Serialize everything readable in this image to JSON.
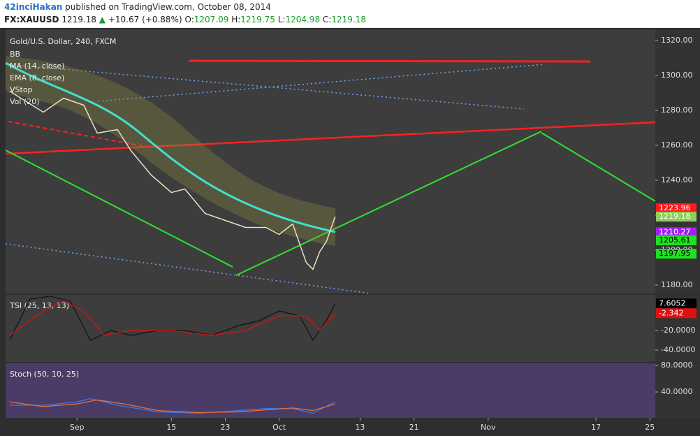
{
  "header": {
    "user": "42inciHakan",
    "published": "published on TradingView.com, October 08, 2014",
    "symbol": "FX:XAUUSD",
    "last": "1219.18",
    "arrow": "▲",
    "change": "+10.67 (+0.88%)",
    "ohlc": [
      {
        "key": "O:",
        "value": "1207.09"
      },
      {
        "key": "H:",
        "value": "1219.75"
      },
      {
        "key": "L:",
        "value": "1204.98"
      },
      {
        "key": "C:",
        "value": "1219.18"
      }
    ]
  },
  "chart_data": [
    {
      "type": "line",
      "title": "Gold/U.S. Dollar, 240, FXCM",
      "legend": [
        "BB",
        "MA (14, close)",
        "EMA (8, close)",
        "VStop",
        "Vol (20)"
      ],
      "xlim": [
        -10.6,
        85.8
      ],
      "ylim": [
        1175.2,
        1326.4
      ],
      "yticks": [
        {
          "value": 1180,
          "label": "1180.00"
        },
        {
          "value": 1200,
          "label": "1200.00"
        },
        {
          "value": 1220,
          "label": "1220.00"
        },
        {
          "value": 1240,
          "label": "1240.00"
        },
        {
          "value": 1260,
          "label": "1260.00"
        },
        {
          "value": 1280,
          "label": "1280.00"
        },
        {
          "value": 1300,
          "label": "1300.00"
        },
        {
          "value": 1320,
          "label": "1320.00"
        }
      ],
      "series": [
        {
          "color": "#e8e0c0",
          "x": [
            -10,
            -5,
            -2,
            1,
            3,
            6,
            8,
            11,
            14,
            16,
            19,
            22,
            25,
            28,
            30,
            32,
            34,
            35,
            36,
            37,
            38.3
          ],
          "values": [
            1291,
            1279,
            1287,
            1283,
            1267,
            1269,
            1257,
            1243,
            1233,
            1235,
            1221,
            1217,
            1213,
            1213,
            1209,
            1215,
            1193,
            1189,
            1199,
            1205,
            1219.18
          ]
        }
      ],
      "price_tags": [
        {
          "value": 1223.96,
          "color": "#ff1a1a",
          "text_color": "#ffffff"
        },
        {
          "value": 1219.18,
          "color": "#8fcf5a",
          "text_color": "#ffffff"
        },
        {
          "value": 1210.27,
          "color": "#a020f0",
          "text_color": "#ffffff"
        },
        {
          "value": 1205.61,
          "color": "#20e020",
          "text_color": "#000000"
        },
        {
          "value": 1197.95,
          "color": "#20e020",
          "text_color": "#000000"
        }
      ]
    },
    {
      "type": "line",
      "title": "TSI (25, 13, 13)",
      "xlim": [
        -10.6,
        85.8
      ],
      "ylim": [
        -52.1,
        16.4
      ],
      "yticks": [
        {
          "value": -20,
          "label": "-20.0000"
        },
        {
          "value": -40,
          "label": "-40.0000"
        }
      ],
      "series": [
        {
          "color": "#111111",
          "x": [
            -10,
            -7,
            -4,
            -1,
            2,
            5,
            8,
            12,
            16,
            20,
            24,
            27,
            30,
            33,
            35,
            37,
            38.3
          ],
          "values": [
            -30,
            12,
            15,
            10,
            -30,
            -20,
            -25,
            -20,
            -20,
            -25,
            -15,
            -10,
            0,
            -5,
            -30,
            -10,
            7.6052
          ]
        },
        {
          "color": "#e01010",
          "x": [
            -10,
            -5,
            -2,
            1,
            4,
            8,
            14,
            20,
            25,
            30,
            34,
            36,
            38.3
          ],
          "values": [
            -25,
            0,
            10,
            0,
            -25,
            -20,
            -20,
            -25,
            -20,
            -5,
            -5,
            -20,
            -2.342
          ]
        }
      ],
      "price_tags": [
        {
          "value": 7.6052,
          "color": "#000000",
          "text_color": "#ffffff"
        },
        {
          "value": -2.342,
          "color": "#e01010",
          "text_color": "#ffffff"
        }
      ]
    },
    {
      "type": "line",
      "title": "Stoch (50, 10, 25)",
      "xlim": [
        -10.6,
        85.8
      ],
      "ylim": [
        1.05,
        83.2
      ],
      "yticks": [
        {
          "value": 40,
          "label": "40.0000"
        },
        {
          "value": 80,
          "label": "80.0000"
        }
      ],
      "xticks": [
        {
          "value": 0,
          "label": "Sep"
        },
        {
          "value": 14,
          "label": "15"
        },
        {
          "value": 22,
          "label": "23"
        },
        {
          "value": 30,
          "label": "Oct"
        },
        {
          "value": 42,
          "label": "13"
        },
        {
          "value": 50,
          "label": "21"
        },
        {
          "value": 61,
          "label": "Nov"
        },
        {
          "value": 77,
          "label": "17"
        },
        {
          "value": 85,
          "label": "25"
        }
      ],
      "series": [
        {
          "color": "#3a7af0",
          "x": [
            -10,
            -5,
            0,
            2,
            6,
            12,
            18,
            24,
            28,
            32,
            35,
            38.3
          ],
          "values": [
            20,
            20,
            25,
            30,
            20,
            10,
            8,
            12,
            15,
            15,
            8,
            25
          ]
        },
        {
          "color": "#f07030",
          "x": [
            -10,
            -5,
            0,
            3,
            7,
            12,
            18,
            24,
            28,
            32,
            35,
            38.3
          ],
          "values": [
            25,
            18,
            22,
            28,
            22,
            12,
            9,
            10,
            13,
            16,
            12,
            22
          ]
        }
      ],
      "price_tags": []
    }
  ]
}
